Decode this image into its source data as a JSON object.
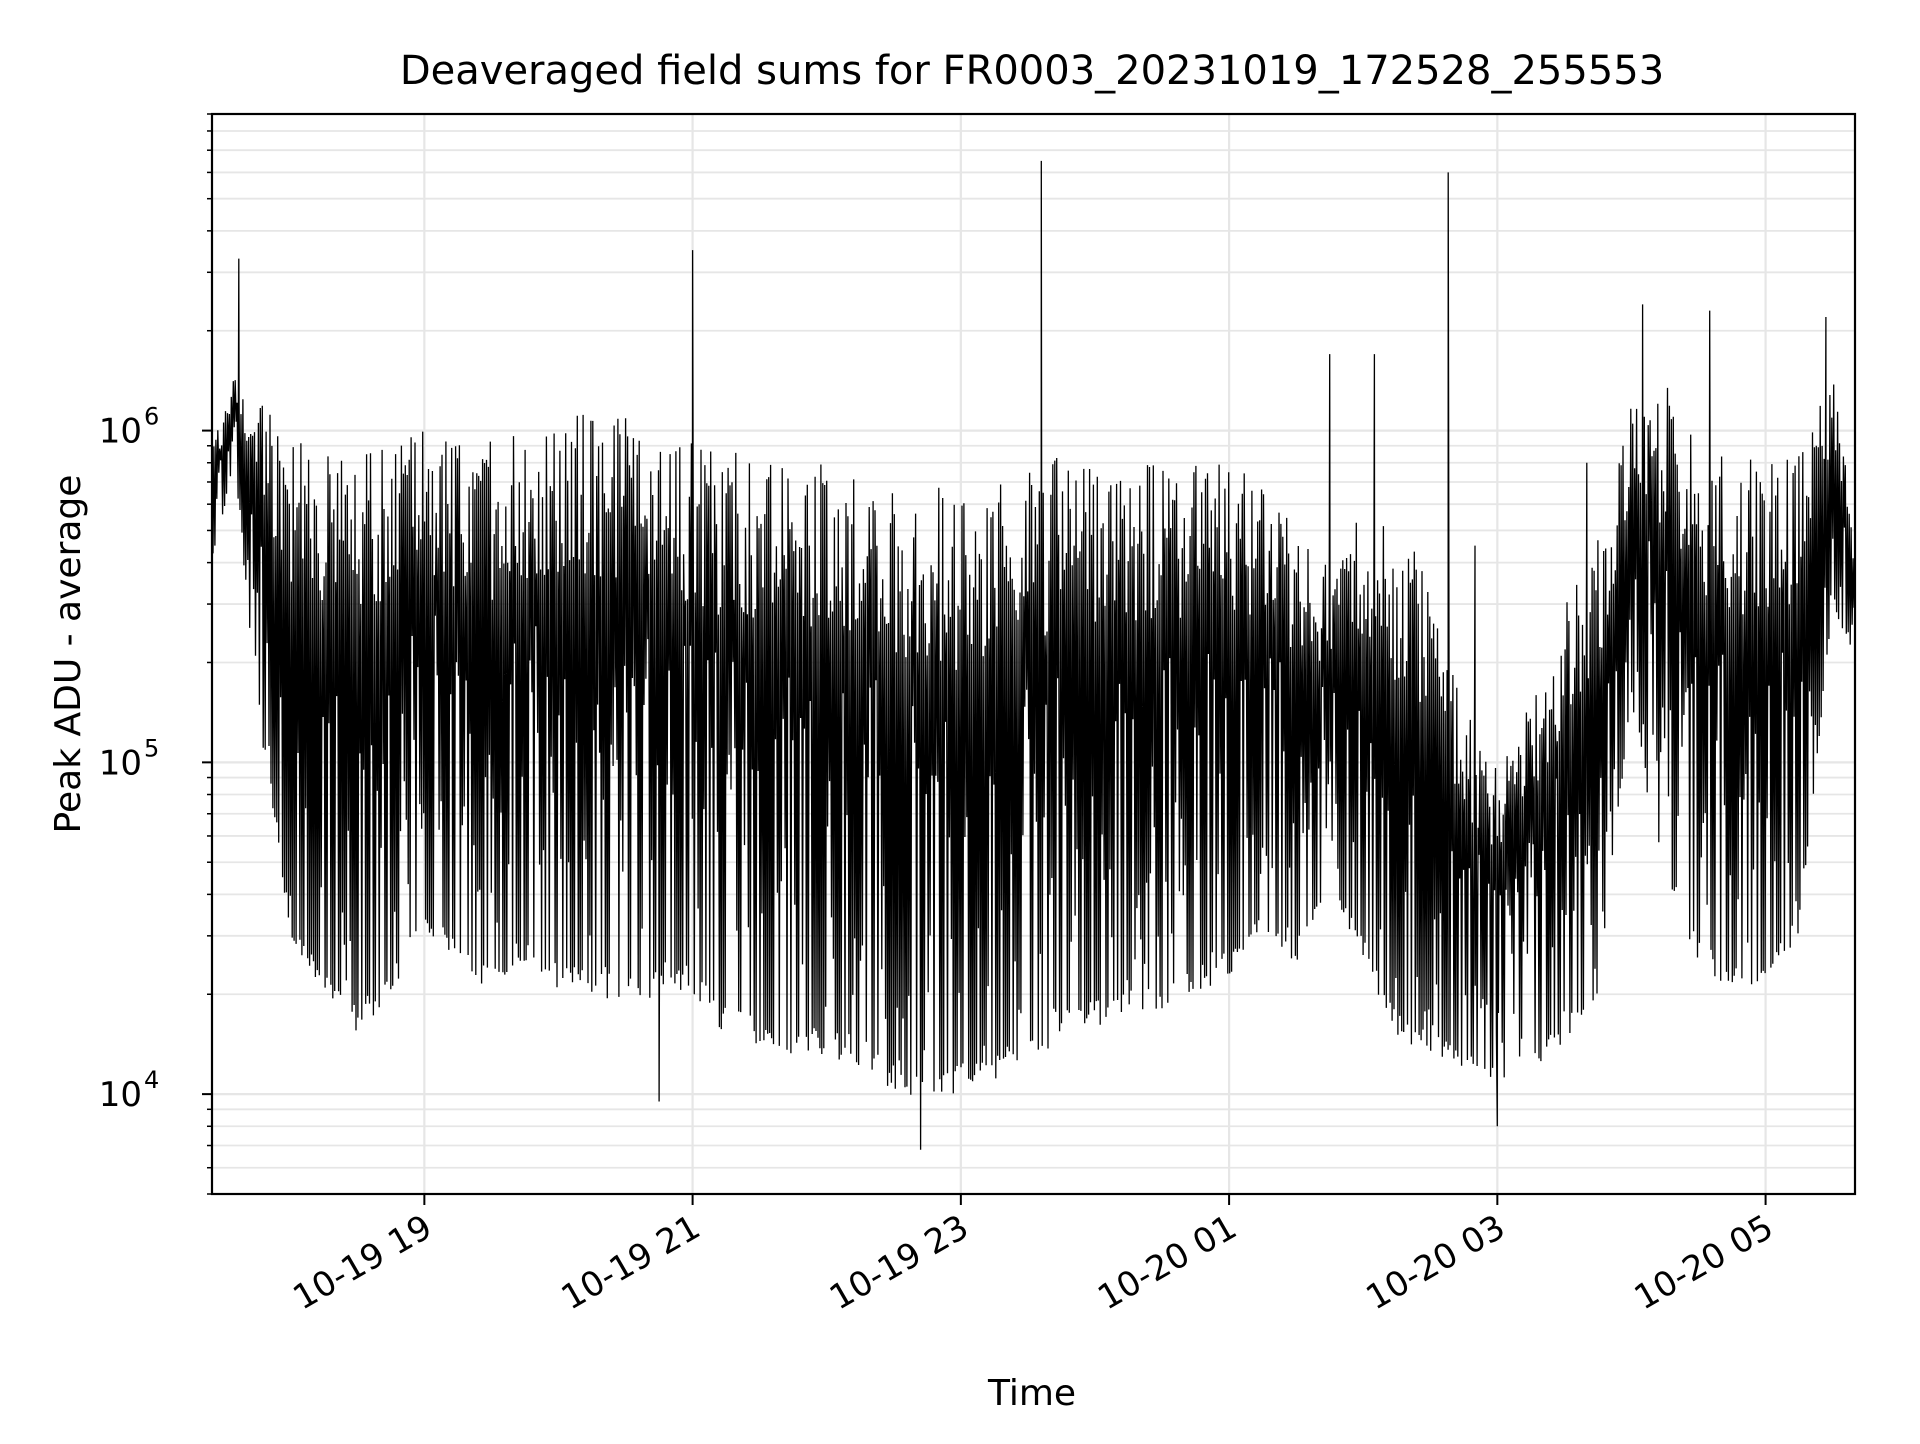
{
  "chart_data": {
    "type": "line",
    "title": "Deaveraged field sums for FR0003_20231019_172528_255553",
    "xlabel": "Time",
    "ylabel": "Peak ADU - average",
    "yscale": "log",
    "ylim": [
      5000,
      9000000
    ],
    "y_ticks": [
      {
        "value": 10000,
        "label_base": "10",
        "label_exp": "4"
      },
      {
        "value": 100000,
        "label_base": "10",
        "label_exp": "5"
      },
      {
        "value": 1000000,
        "label_base": "10",
        "label_exp": "6"
      }
    ],
    "xlim": [
      "2023-10-19 17:25",
      "2023-10-20 05:40"
    ],
    "x_ticks": [
      {
        "value": "2023-10-19 19:00",
        "label": "10-19 19"
      },
      {
        "value": "2023-10-19 21:00",
        "label": "10-19 21"
      },
      {
        "value": "2023-10-19 23:00",
        "label": "10-19 23"
      },
      {
        "value": "2023-10-20 01:00",
        "label": "10-20 01"
      },
      {
        "value": "2023-10-20 03:00",
        "label": "10-20 03"
      },
      {
        "value": "2023-10-20 05:00",
        "label": "10-20 05"
      }
    ],
    "grid": true,
    "line_color": "#000000",
    "grid_color": "#e6e6e6",
    "envelope": {
      "t": [
        "2023-10-19 17:25",
        "2023-10-19 17:35",
        "2023-10-19 17:45",
        "2023-10-19 18:00",
        "2023-10-19 18:15",
        "2023-10-19 18:30",
        "2023-10-19 18:45",
        "2023-10-19 19:00",
        "2023-10-19 19:15",
        "2023-10-19 19:30",
        "2023-10-19 19:45",
        "2023-10-19 20:00",
        "2023-10-19 20:15",
        "2023-10-19 20:30",
        "2023-10-19 20:45",
        "2023-10-19 21:00",
        "2023-10-19 21:15",
        "2023-10-19 21:30",
        "2023-10-19 21:45",
        "2023-10-19 22:00",
        "2023-10-19 22:15",
        "2023-10-19 22:30",
        "2023-10-19 22:45",
        "2023-10-19 23:00",
        "2023-10-19 23:15",
        "2023-10-19 23:30",
        "2023-10-19 23:45",
        "2023-10-20 00:00",
        "2023-10-20 00:15",
        "2023-10-20 00:30",
        "2023-10-20 00:45",
        "2023-10-20 01:00",
        "2023-10-20 01:15",
        "2023-10-20 01:30",
        "2023-10-20 01:45",
        "2023-10-20 02:00",
        "2023-10-20 02:15",
        "2023-10-20 02:30",
        "2023-10-20 02:45",
        "2023-10-20 03:00",
        "2023-10-20 03:15",
        "2023-10-20 03:30",
        "2023-10-20 03:45",
        "2023-10-20 04:00",
        "2023-10-20 04:15",
        "2023-10-20 04:30",
        "2023-10-20 04:45",
        "2023-10-20 05:00",
        "2023-10-20 05:15",
        "2023-10-20 05:30",
        "2023-10-20 05:40"
      ],
      "upper": [
        900000,
        1500000,
        1300000,
        950000,
        900000,
        850000,
        900000,
        1000000,
        1000000,
        950000,
        1000000,
        1100000,
        1200000,
        1150000,
        1000000,
        950000,
        900000,
        850000,
        850000,
        800000,
        800000,
        780000,
        700000,
        650000,
        700000,
        800000,
        850000,
        850000,
        850000,
        850000,
        800000,
        850000,
        700000,
        500000,
        400000,
        600000,
        500000,
        400000,
        150000,
        100000,
        150000,
        300000,
        500000,
        1200000,
        1500000,
        900000,
        850000,
        800000,
        850000,
        1500000,
        500000
      ],
      "lower": [
        400000,
        800000,
        150000,
        30000,
        20000,
        15000,
        20000,
        30000,
        25000,
        20000,
        25000,
        20000,
        20000,
        18000,
        20000,
        20000,
        15000,
        14000,
        13000,
        13000,
        12000,
        10000,
        9000,
        10000,
        11000,
        12000,
        15000,
        16000,
        17000,
        18000,
        20000,
        22000,
        30000,
        25000,
        40000,
        25000,
        15000,
        13000,
        12000,
        11000,
        12000,
        14000,
        20000,
        150000,
        40000,
        25000,
        20000,
        20000,
        30000,
        300000,
        200000
      ]
    },
    "spikes": [
      {
        "t": "2023-10-19 17:37",
        "value": 3300000
      },
      {
        "t": "2023-10-19 21:00",
        "value": 3500000
      },
      {
        "t": "2023-10-19 23:36",
        "value": 6500000
      },
      {
        "t": "2023-10-20 01:45",
        "value": 1700000
      },
      {
        "t": "2023-10-20 02:05",
        "value": 1700000
      },
      {
        "t": "2023-10-20 02:38",
        "value": 6000000
      },
      {
        "t": "2023-10-20 02:50",
        "value": 450000
      },
      {
        "t": "2023-10-20 03:40",
        "value": 800000
      },
      {
        "t": "2023-10-20 04:05",
        "value": 2400000
      },
      {
        "t": "2023-10-20 04:35",
        "value": 2300000
      },
      {
        "t": "2023-10-20 05:27",
        "value": 2200000
      },
      {
        "t": "2023-10-19 22:42",
        "value": 6800
      },
      {
        "t": "2023-10-19 20:45",
        "value": 9500
      },
      {
        "t": "2023-10-20 03:00",
        "value": 8000
      }
    ]
  }
}
